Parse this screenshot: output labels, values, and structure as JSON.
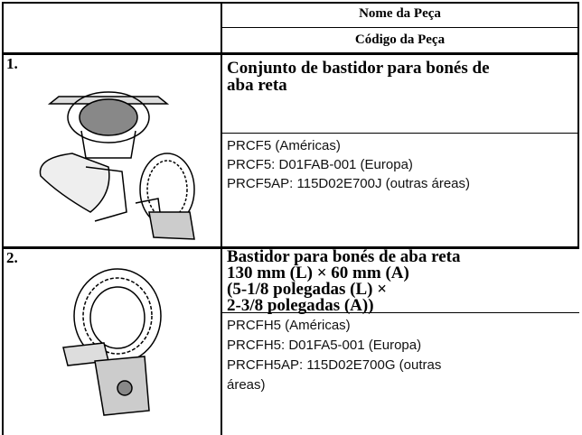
{
  "header": {
    "part_name": "Nome da Peça",
    "part_code": "Código da Peça"
  },
  "items": [
    {
      "number": "1.",
      "title_lines": [
        "Conjunto de bastidor para bonés de",
        "aba reta"
      ],
      "lines": [
        "PRCF5 (Américas)",
        "PRCF5: D01FAB-001 (Europa)",
        "PRCF5AP: 115D02E700J (outras áreas)"
      ]
    },
    {
      "number": "2.",
      "title_lines": [
        "Bastidor para bonés de aba reta",
        "130 mm (L) × 60 mm (A)",
        "(5-1/8 polegadas (L) ×",
        "2-3/8 polegadas (A))"
      ],
      "lines": [
        "PRCFH5 (Américas)",
        "PRCFH5: D01FA5-001 (Europa)",
        "PRCFH5AP: 115D02E700G (outras",
        "áreas)"
      ]
    }
  ]
}
